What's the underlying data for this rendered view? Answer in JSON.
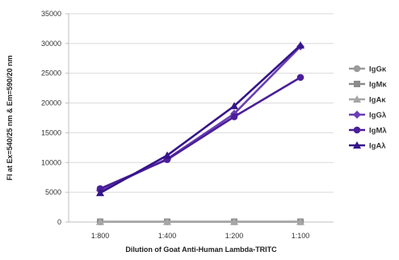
{
  "chart_data": {
    "type": "line",
    "title": "",
    "xlabel": "Dilution of Goat Anti-Human Lambda-TRITC",
    "ylabel": "FI at Ex=540/25 nm & Em=590/20 nm",
    "categories": [
      "1:800",
      "1:400",
      "1:200",
      "1:100"
    ],
    "ylim": [
      0,
      35000
    ],
    "yticks": [
      0,
      5000,
      10000,
      15000,
      20000,
      25000,
      30000,
      35000
    ],
    "ytick_labels": [
      "0",
      "5000",
      "10000",
      "15000",
      "20000",
      "25000",
      "30000",
      "35000"
    ],
    "grid": "horizontal",
    "legend_position": "right",
    "series": [
      {
        "name": "IgGκ",
        "values": [
          50,
          50,
          50,
          50
        ],
        "color": "#9a9a9a",
        "marker": "circle"
      },
      {
        "name": "IgMκ",
        "values": [
          50,
          50,
          50,
          50
        ],
        "color": "#8c8c8c",
        "marker": "square"
      },
      {
        "name": "IgAκ",
        "values": [
          50,
          50,
          50,
          50
        ],
        "color": "#a6a6a6",
        "marker": "triangle"
      },
      {
        "name": "IgGλ",
        "values": [
          5300,
          10600,
          18200,
          29500
        ],
        "color": "#6a3fb5",
        "marker": "diamond"
      },
      {
        "name": "IgMλ",
        "values": [
          5600,
          10500,
          17700,
          24300
        ],
        "color": "#4a1f99",
        "marker": "circle"
      },
      {
        "name": "IgAλ",
        "values": [
          4900,
          11200,
          19500,
          29700
        ],
        "color": "#35148a",
        "marker": "triangle"
      }
    ]
  }
}
